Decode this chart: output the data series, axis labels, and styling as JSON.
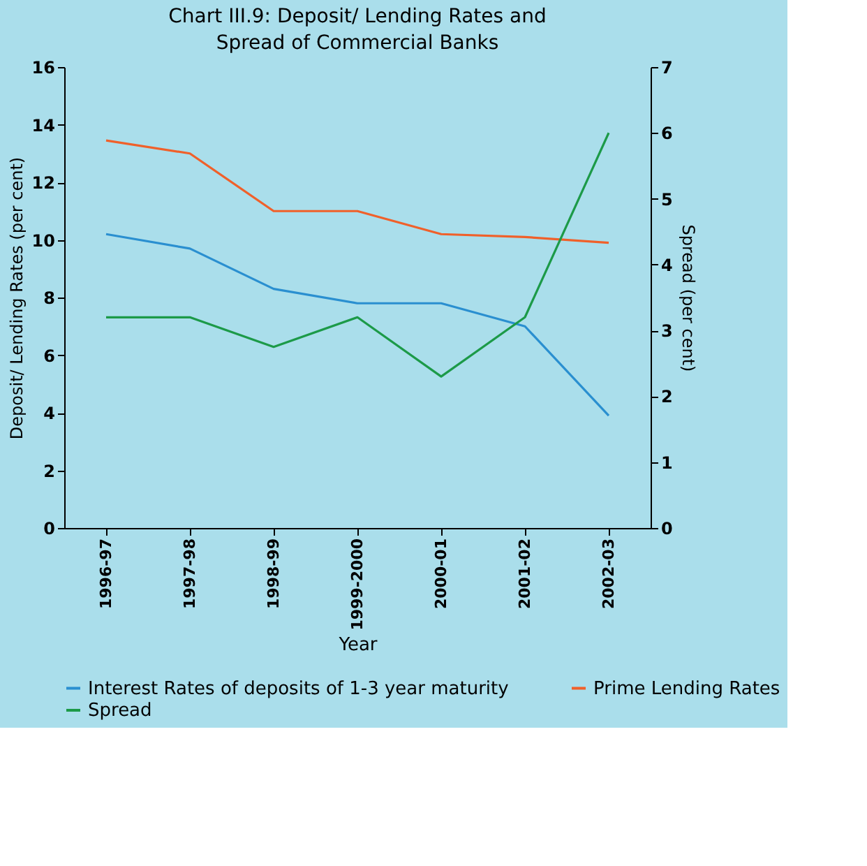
{
  "chart_data": {
    "type": "line",
    "title": "Chart III.9: Deposit/ Lending Rates and Spread of Commercial Banks",
    "xlabel": "Year",
    "ylabel": "Deposit/ Lending Rates (per cent)",
    "y2label": "Spread (per cent)",
    "categories": [
      "1996-97",
      "1997-98",
      "1998-99",
      "1999-2000",
      "2000-01",
      "2001-02",
      "2002-03"
    ],
    "series": [
      {
        "name": "Interest Rates of deposits of 1-3 year maturity",
        "color": "#2a8fd0",
        "values": [
          10.2,
          9.7,
          8.3,
          7.8,
          7.8,
          7.0,
          3.9
        ]
      },
      {
        "name": "Prime Lending Rates",
        "color": "#f0602a",
        "values": [
          13.45,
          13.0,
          11.0,
          11.0,
          10.2,
          10.1,
          9.9
        ]
      },
      {
        "name": "Spread",
        "color": "#1c9a48",
        "axis": "y2",
        "values": [
          3.2,
          3.2,
          2.75,
          3.2,
          2.3,
          3.2,
          6.0
        ]
      }
    ],
    "ylim": [
      0,
      16
    ],
    "yticks": [
      0,
      2,
      4,
      6,
      8,
      10,
      12,
      14,
      16
    ],
    "y2lim": [
      0,
      7
    ],
    "y2ticks": [
      0,
      1,
      2,
      3,
      4,
      5,
      6,
      7
    ],
    "grid": false,
    "legend": "bottom",
    "marker": "none",
    "line_style": "solid"
  }
}
